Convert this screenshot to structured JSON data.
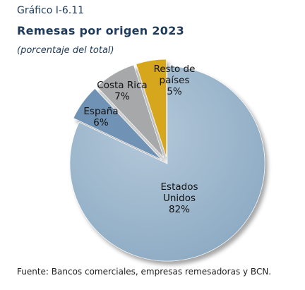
{
  "header": {
    "label": "Gráfico I-6.11",
    "title": "Remesas por origen 2023",
    "subtitle": "(porcentaje del total)"
  },
  "chart_data": {
    "type": "pie",
    "title": "Remesas por origen 2023",
    "subtitle": "(porcentaje del total)",
    "slices": [
      {
        "label": "Estados Unidos",
        "label_lines": [
          "Estados",
          "Unidos"
        ],
        "value": 82,
        "value_label": "82%",
        "color": "#97b4cc",
        "exploded": false
      },
      {
        "label": "España",
        "label_lines": [
          "España"
        ],
        "value": 6,
        "value_label": "6%",
        "color": "#6f93b5",
        "exploded": true
      },
      {
        "label": "Costa Rica",
        "label_lines": [
          "Costa Rica"
        ],
        "value": 7,
        "value_label": "7%",
        "color": "#a6a8aa",
        "exploded": true
      },
      {
        "label": "Resto de países",
        "label_lines": [
          "Resto de",
          "países"
        ],
        "value": 5,
        "value_label": "5%",
        "color": "#d6a71c",
        "exploded": true
      }
    ],
    "legend": "none"
  },
  "source": "Fuente: Bancos comerciales, empresas remesadoras y BCN."
}
